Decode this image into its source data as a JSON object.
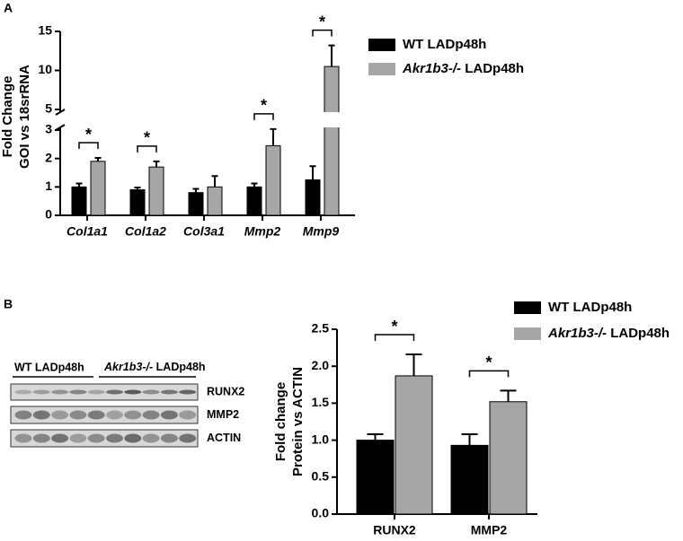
{
  "chart_data": [
    {
      "type": "bar",
      "panel_label": "A",
      "y_label": [
        "Fold Change",
        "GOI vs 18srRNA"
      ],
      "categories": [
        "Col1a1",
        "Col1a2",
        "Col3a1",
        "Mmp2",
        "Mmp9"
      ],
      "italic_categories": true,
      "series": [
        {
          "name": "WT LADp48h",
          "color": "#000000",
          "values": [
            1.0,
            0.9,
            0.8,
            1.0,
            1.25
          ],
          "errors": [
            0.12,
            0.08,
            0.13,
            0.12,
            0.48
          ]
        },
        {
          "name": "Akr1b3-/- LADp48h",
          "color": "#a6a6a6",
          "values": [
            1.9,
            1.7,
            1.0,
            2.45,
            10.5
          ],
          "errors": [
            0.12,
            0.2,
            0.38,
            0.65,
            2.7
          ]
        }
      ],
      "ylim": [
        0,
        15
      ],
      "ybreak": [
        3,
        5
      ],
      "yticks": [
        0,
        1,
        2,
        3,
        5,
        10,
        15
      ],
      "annotations": [
        {
          "text": "*",
          "category": "Col1a1"
        },
        {
          "text": "*",
          "category": "Col1a2"
        },
        {
          "text": "*",
          "category": "Mmp2"
        },
        {
          "text": "*",
          "category": "Mmp9"
        }
      ],
      "legend": "right"
    },
    {
      "type": "bar",
      "panel_label": "B",
      "y_label": [
        "Fold change",
        "Protein vs ACTIN"
      ],
      "categories": [
        "RUNX2",
        "MMP2"
      ],
      "italic_categories": false,
      "series": [
        {
          "name": "WT LADp48h",
          "color": "#000000",
          "values": [
            1.0,
            0.93
          ],
          "errors": [
            0.08,
            0.15
          ]
        },
        {
          "name": "Akr1b3-/- LADp48h",
          "color": "#a6a6a6",
          "values": [
            1.87,
            1.52
          ],
          "errors": [
            0.29,
            0.15
          ]
        }
      ],
      "ylim": [
        0,
        2.5
      ],
      "yticks": [
        {
          "value": 0,
          "label": "0.0"
        },
        {
          "value": 0.5,
          "label": "0.5"
        },
        {
          "value": 1,
          "label": "1.0"
        },
        {
          "value": 1.5,
          "label": "1.5"
        },
        {
          "value": 2,
          "label": "2.0"
        },
        {
          "value": 2.5,
          "label": "2.5"
        }
      ],
      "annotations": [
        {
          "text": "*",
          "category": "RUNX2"
        },
        {
          "text": "*",
          "category": "MMP2"
        }
      ],
      "legend": "top"
    }
  ],
  "blot": {
    "groups": [
      "WT LADp48h",
      "Akr1b3-/- LADp48h"
    ],
    "bands": [
      "RUNX2",
      "MMP2",
      "ACTIN"
    ]
  }
}
